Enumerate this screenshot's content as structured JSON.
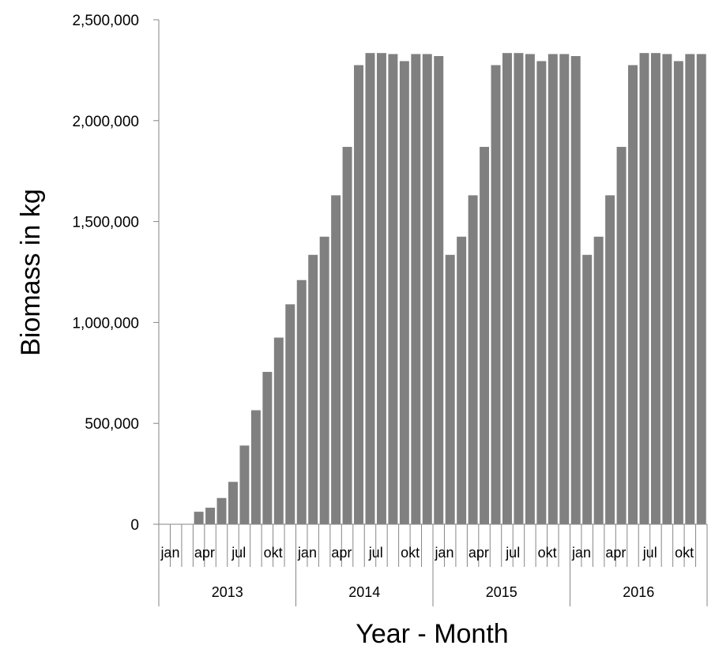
{
  "chart_data": {
    "type": "bar",
    "title": "",
    "xlabel": "Year - Month",
    "ylabel": "Biomass in kg",
    "ylim": [
      0,
      2500000
    ],
    "y_ticks": [
      "0",
      "500,000",
      "1,000,000",
      "1,500,000",
      "2,000,000",
      "2,500,000"
    ],
    "y_tick_values": [
      0,
      500000,
      1000000,
      1500000,
      2000000,
      2500000
    ],
    "grid": false,
    "bar_color": "#808080",
    "years": [
      "2013",
      "2014",
      "2015",
      "2016"
    ],
    "month_labels": [
      "jan",
      "apr",
      "jul",
      "okt"
    ],
    "month_label_indices": [
      0,
      3,
      6,
      9
    ],
    "values": [
      0,
      0,
      0,
      62000,
      82000,
      130000,
      210000,
      390000,
      565000,
      755000,
      925000,
      1090000,
      1210000,
      1335000,
      1425000,
      1630000,
      1870000,
      2275000,
      2335000,
      2335000,
      2330000,
      2295000,
      2330000,
      2330000,
      2320000,
      1335000,
      1425000,
      1630000,
      1870000,
      2275000,
      2335000,
      2335000,
      2330000,
      2295000,
      2330000,
      2330000,
      2320000,
      1335000,
      1425000,
      1630000,
      1870000,
      2275000,
      2335000,
      2335000,
      2330000,
      2295000,
      2330000,
      2330000
    ]
  }
}
